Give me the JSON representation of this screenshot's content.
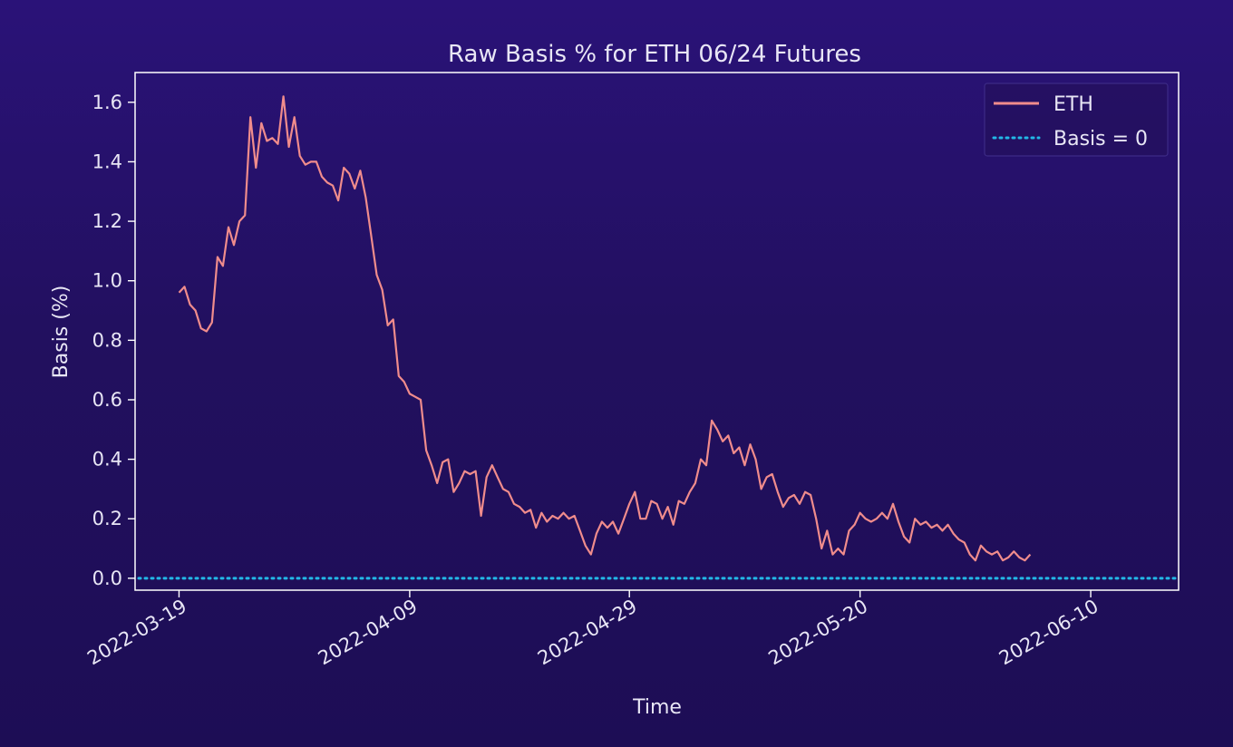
{
  "chart_data": {
    "type": "line",
    "title": "Raw Basis % for ETH 06/24 Futures",
    "xlabel": "Time",
    "ylabel": "Basis (%)",
    "xlim": [
      "2022-03-15",
      "2022-06-18"
    ],
    "ylim": [
      -0.04,
      1.7
    ],
    "x_ticks": [
      "2022-03-19",
      "2022-04-09",
      "2022-04-29",
      "2022-05-20",
      "2022-06-10"
    ],
    "y_ticks": [
      "0.0",
      "0.2",
      "0.4",
      "0.6",
      "0.8",
      "1.0",
      "1.2",
      "1.4",
      "1.6"
    ],
    "grid": false,
    "legend_position": "top-right",
    "reference_line": {
      "name": "Basis = 0",
      "value": 0.0,
      "color": "#22b8e6",
      "style": "dotted"
    },
    "series": [
      {
        "name": "ETH",
        "color": "#f08c8c",
        "points": [
          [
            "2022-03-19",
            0.96
          ],
          [
            "2022-03-19 12:00",
            0.98
          ],
          [
            "2022-03-20",
            0.92
          ],
          [
            "2022-03-20 12:00",
            0.9
          ],
          [
            "2022-03-21",
            0.84
          ],
          [
            "2022-03-21 12:00",
            0.83
          ],
          [
            "2022-03-22",
            0.86
          ],
          [
            "2022-03-22 12:00",
            1.08
          ],
          [
            "2022-03-23",
            1.05
          ],
          [
            "2022-03-23 12:00",
            1.18
          ],
          [
            "2022-03-24",
            1.12
          ],
          [
            "2022-03-24 12:00",
            1.2
          ],
          [
            "2022-03-25",
            1.22
          ],
          [
            "2022-03-25 12:00",
            1.55
          ],
          [
            "2022-03-26",
            1.38
          ],
          [
            "2022-03-26 12:00",
            1.53
          ],
          [
            "2022-03-27",
            1.47
          ],
          [
            "2022-03-27 12:00",
            1.48
          ],
          [
            "2022-03-28",
            1.46
          ],
          [
            "2022-03-28 12:00",
            1.62
          ],
          [
            "2022-03-29",
            1.45
          ],
          [
            "2022-03-29 12:00",
            1.55
          ],
          [
            "2022-03-30",
            1.42
          ],
          [
            "2022-03-30 12:00",
            1.39
          ],
          [
            "2022-03-31",
            1.4
          ],
          [
            "2022-03-31 12:00",
            1.4
          ],
          [
            "2022-04-01",
            1.35
          ],
          [
            "2022-04-01 12:00",
            1.33
          ],
          [
            "2022-04-02",
            1.32
          ],
          [
            "2022-04-02 12:00",
            1.27
          ],
          [
            "2022-04-03",
            1.38
          ],
          [
            "2022-04-03 12:00",
            1.36
          ],
          [
            "2022-04-04",
            1.31
          ],
          [
            "2022-04-04 12:00",
            1.37
          ],
          [
            "2022-04-05",
            1.28
          ],
          [
            "2022-04-05 12:00",
            1.15
          ],
          [
            "2022-04-06",
            1.02
          ],
          [
            "2022-04-06 12:00",
            0.97
          ],
          [
            "2022-04-07",
            0.85
          ],
          [
            "2022-04-07 12:00",
            0.87
          ],
          [
            "2022-04-08",
            0.68
          ],
          [
            "2022-04-08 12:00",
            0.66
          ],
          [
            "2022-04-09",
            0.62
          ],
          [
            "2022-04-09 12:00",
            0.61
          ],
          [
            "2022-04-10",
            0.6
          ],
          [
            "2022-04-10 12:00",
            0.43
          ],
          [
            "2022-04-11",
            0.38
          ],
          [
            "2022-04-11 12:00",
            0.32
          ],
          [
            "2022-04-12",
            0.39
          ],
          [
            "2022-04-12 12:00",
            0.4
          ],
          [
            "2022-04-13",
            0.29
          ],
          [
            "2022-04-13 12:00",
            0.32
          ],
          [
            "2022-04-14",
            0.36
          ],
          [
            "2022-04-14 12:00",
            0.35
          ],
          [
            "2022-04-15",
            0.36
          ],
          [
            "2022-04-15 12:00",
            0.21
          ],
          [
            "2022-04-16",
            0.34
          ],
          [
            "2022-04-16 12:00",
            0.38
          ],
          [
            "2022-04-17",
            0.34
          ],
          [
            "2022-04-17 12:00",
            0.3
          ],
          [
            "2022-04-18",
            0.29
          ],
          [
            "2022-04-18 12:00",
            0.25
          ],
          [
            "2022-04-19",
            0.24
          ],
          [
            "2022-04-19 12:00",
            0.22
          ],
          [
            "2022-04-20",
            0.23
          ],
          [
            "2022-04-20 12:00",
            0.17
          ],
          [
            "2022-04-21",
            0.22
          ],
          [
            "2022-04-21 12:00",
            0.19
          ],
          [
            "2022-04-22",
            0.21
          ],
          [
            "2022-04-22 12:00",
            0.2
          ],
          [
            "2022-04-23",
            0.22
          ],
          [
            "2022-04-23 12:00",
            0.2
          ],
          [
            "2022-04-24",
            0.21
          ],
          [
            "2022-04-24 12:00",
            0.16
          ],
          [
            "2022-04-25",
            0.11
          ],
          [
            "2022-04-25 12:00",
            0.08
          ],
          [
            "2022-04-26",
            0.15
          ],
          [
            "2022-04-26 12:00",
            0.19
          ],
          [
            "2022-04-27",
            0.17
          ],
          [
            "2022-04-27 12:00",
            0.19
          ],
          [
            "2022-04-28",
            0.15
          ],
          [
            "2022-04-28 12:00",
            0.2
          ],
          [
            "2022-04-29",
            0.25
          ],
          [
            "2022-04-29 12:00",
            0.29
          ],
          [
            "2022-04-30",
            0.2
          ],
          [
            "2022-04-30 12:00",
            0.2
          ],
          [
            "2022-05-01",
            0.26
          ],
          [
            "2022-05-01 12:00",
            0.25
          ],
          [
            "2022-05-02",
            0.2
          ],
          [
            "2022-05-02 12:00",
            0.24
          ],
          [
            "2022-05-03",
            0.18
          ],
          [
            "2022-05-03 12:00",
            0.26
          ],
          [
            "2022-05-04",
            0.25
          ],
          [
            "2022-05-04 12:00",
            0.29
          ],
          [
            "2022-05-05",
            0.32
          ],
          [
            "2022-05-05 12:00",
            0.4
          ],
          [
            "2022-05-06",
            0.38
          ],
          [
            "2022-05-06 12:00",
            0.53
          ],
          [
            "2022-05-07",
            0.5
          ],
          [
            "2022-05-07 12:00",
            0.46
          ],
          [
            "2022-05-08",
            0.48
          ],
          [
            "2022-05-08 12:00",
            0.42
          ],
          [
            "2022-05-09",
            0.44
          ],
          [
            "2022-05-09 12:00",
            0.38
          ],
          [
            "2022-05-10",
            0.45
          ],
          [
            "2022-05-10 12:00",
            0.4
          ],
          [
            "2022-05-11",
            0.3
          ],
          [
            "2022-05-11 12:00",
            0.34
          ],
          [
            "2022-05-12",
            0.35
          ],
          [
            "2022-05-12 12:00",
            0.29
          ],
          [
            "2022-05-13",
            0.24
          ],
          [
            "2022-05-13 12:00",
            0.27
          ],
          [
            "2022-05-14",
            0.28
          ],
          [
            "2022-05-14 12:00",
            0.25
          ],
          [
            "2022-05-15",
            0.29
          ],
          [
            "2022-05-15 12:00",
            0.28
          ],
          [
            "2022-05-16",
            0.2
          ],
          [
            "2022-05-16 12:00",
            0.1
          ],
          [
            "2022-05-17",
            0.16
          ],
          [
            "2022-05-17 12:00",
            0.08
          ],
          [
            "2022-05-18",
            0.1
          ],
          [
            "2022-05-18 12:00",
            0.08
          ],
          [
            "2022-05-19",
            0.16
          ],
          [
            "2022-05-19 12:00",
            0.18
          ],
          [
            "2022-05-20",
            0.22
          ],
          [
            "2022-05-20 12:00",
            0.2
          ],
          [
            "2022-05-21",
            0.19
          ],
          [
            "2022-05-21 12:00",
            0.2
          ],
          [
            "2022-05-22",
            0.22
          ],
          [
            "2022-05-22 12:00",
            0.2
          ],
          [
            "2022-05-23",
            0.25
          ],
          [
            "2022-05-23 12:00",
            0.19
          ],
          [
            "2022-05-24",
            0.14
          ],
          [
            "2022-05-24 12:00",
            0.12
          ],
          [
            "2022-05-25",
            0.2
          ],
          [
            "2022-05-25 12:00",
            0.18
          ],
          [
            "2022-05-26",
            0.19
          ],
          [
            "2022-05-26 12:00",
            0.17
          ],
          [
            "2022-05-27",
            0.18
          ],
          [
            "2022-05-27 12:00",
            0.16
          ],
          [
            "2022-05-28",
            0.18
          ],
          [
            "2022-05-28 12:00",
            0.15
          ],
          [
            "2022-05-29",
            0.13
          ],
          [
            "2022-05-29 12:00",
            0.12
          ],
          [
            "2022-05-30",
            0.08
          ],
          [
            "2022-05-30 12:00",
            0.06
          ],
          [
            "2022-05-31",
            0.11
          ],
          [
            "2022-05-31 12:00",
            0.09
          ],
          [
            "2022-06-01",
            0.08
          ],
          [
            "2022-06-01 12:00",
            0.09
          ],
          [
            "2022-06-02",
            0.06
          ],
          [
            "2022-06-02 12:00",
            0.07
          ],
          [
            "2022-06-03",
            0.09
          ],
          [
            "2022-06-03 12:00",
            0.07
          ],
          [
            "2022-06-04",
            0.06
          ],
          [
            "2022-06-04 12:00",
            0.08
          ]
        ]
      }
    ]
  }
}
